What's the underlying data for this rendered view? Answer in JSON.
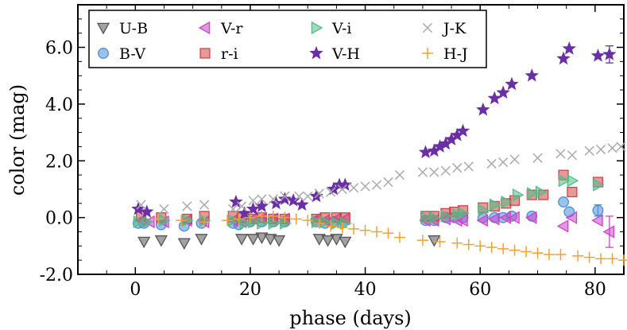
{
  "chart_data": {
    "type": "scatter",
    "xlabel": "phase (days)",
    "ylabel": "color (mag)",
    "xlim": [
      -10,
      85
    ],
    "ylim": [
      -2.0,
      7.5
    ],
    "x_ticks": [
      0,
      20,
      40,
      60,
      80
    ],
    "x_tick_labels": [
      "0",
      "20",
      "40",
      "60",
      "80"
    ],
    "y_ticks": [
      -2.0,
      0.0,
      2.0,
      4.0,
      6.0
    ],
    "y_tick_labels": [
      "-2.0",
      "0.0",
      "2.0",
      "4.0",
      "6.0"
    ],
    "legend_position": "top",
    "series": [
      {
        "name": "U-B",
        "marker": "triangle-down",
        "color": "#555555",
        "points": [
          [
            1.5,
            -0.85
          ],
          [
            4.5,
            -0.8
          ],
          [
            8.5,
            -0.9
          ],
          [
            11.5,
            -0.75
          ],
          [
            18.5,
            -0.75
          ],
          [
            20.5,
            -0.75
          ],
          [
            22,
            -0.7
          ],
          [
            23.5,
            -0.75
          ],
          [
            25,
            -0.8
          ],
          [
            32,
            -0.75
          ],
          [
            33.5,
            -0.8
          ],
          [
            35,
            -0.75
          ],
          [
            36.5,
            -0.85
          ],
          [
            52,
            -0.8
          ]
        ]
      },
      {
        "name": "B-V",
        "marker": "circle",
        "color": "#4a90d9",
        "points": [
          [
            0.5,
            -0.2
          ],
          [
            1.5,
            -0.2
          ],
          [
            4.5,
            -0.25
          ],
          [
            8.5,
            -0.3
          ],
          [
            11.5,
            -0.2
          ],
          [
            17,
            -0.2
          ],
          [
            18,
            -0.25
          ],
          [
            20,
            -0.15
          ],
          [
            22,
            -0.15
          ],
          [
            24,
            -0.15
          ],
          [
            26,
            -0.15
          ],
          [
            31.5,
            -0.15
          ],
          [
            33,
            -0.2
          ],
          [
            34.5,
            -0.15
          ],
          [
            36,
            -0.2
          ],
          [
            50.5,
            -0.1
          ],
          [
            52,
            -0.1
          ],
          [
            54,
            0
          ],
          [
            55.5,
            0
          ],
          [
            57,
            0
          ],
          [
            60.5,
            0
          ],
          [
            62.5,
            0
          ],
          [
            64,
            0
          ],
          [
            65.5,
            0.05
          ],
          [
            69,
            0.05
          ],
          [
            74.5,
            0.55
          ],
          [
            75.5,
            0.2
          ],
          [
            80.5,
            0.25
          ]
        ]
      },
      {
        "name": "V-r",
        "marker": "triangle-left",
        "color": "#cc44cc",
        "points": [
          [
            1,
            -0.1
          ],
          [
            2.5,
            -0.15
          ],
          [
            5,
            -0.15
          ],
          [
            9,
            -0.1
          ],
          [
            12,
            -0.15
          ],
          [
            17,
            -0.1
          ],
          [
            18.5,
            -0.15
          ],
          [
            20.5,
            -0.05
          ],
          [
            22,
            -0.05
          ],
          [
            24,
            -0.05
          ],
          [
            26,
            -0.05
          ],
          [
            31.5,
            -0.05
          ],
          [
            33,
            -0.1
          ],
          [
            35,
            -0.05
          ],
          [
            36.5,
            -0.05
          ],
          [
            50.5,
            -0.1
          ],
          [
            52,
            -0.1
          ],
          [
            54,
            -0.05
          ],
          [
            56,
            -0.1
          ],
          [
            57,
            -0.1
          ],
          [
            60.5,
            -0.1
          ],
          [
            62.5,
            -0.05
          ],
          [
            64.5,
            0
          ],
          [
            66,
            0
          ],
          [
            69,
            0
          ],
          [
            74.5,
            -0.3
          ],
          [
            76,
            0
          ],
          [
            80.5,
            -0.1
          ],
          [
            82.5,
            -0.5
          ]
        ]
      },
      {
        "name": "r-i",
        "marker": "square",
        "color": "#d04545",
        "points": [
          [
            1,
            0.05
          ],
          [
            4.5,
            0
          ],
          [
            9,
            -0.05
          ],
          [
            12,
            0.05
          ],
          [
            17,
            0.05
          ],
          [
            18.5,
            0
          ],
          [
            20.5,
            -0.05
          ],
          [
            22,
            0
          ],
          [
            24,
            -0.05
          ],
          [
            26,
            -0.05
          ],
          [
            31.5,
            -0.05
          ],
          [
            33,
            0
          ],
          [
            35,
            0
          ],
          [
            36.5,
            0
          ],
          [
            50.5,
            0.05
          ],
          [
            52,
            0.05
          ],
          [
            54,
            0.15
          ],
          [
            55.5,
            0.2
          ],
          [
            57,
            0.25
          ],
          [
            60.5,
            0.35
          ],
          [
            62.5,
            0.4
          ],
          [
            64.5,
            0.5
          ],
          [
            66,
            0.6
          ],
          [
            69,
            0.8
          ],
          [
            71,
            0.8
          ],
          [
            74.5,
            1.5
          ],
          [
            76,
            0.9
          ],
          [
            80.5,
            1.25
          ]
        ]
      },
      {
        "name": "V-i",
        "marker": "triangle-right",
        "color": "#55bb88",
        "points": [
          [
            0.5,
            -0.15
          ],
          [
            2,
            -0.15
          ],
          [
            5,
            -0.1
          ],
          [
            9,
            -0.1
          ],
          [
            12,
            -0.1
          ],
          [
            17,
            -0.1
          ],
          [
            19,
            -0.2
          ],
          [
            20.5,
            -0.15
          ],
          [
            22,
            -0.2
          ],
          [
            24,
            -0.2
          ],
          [
            26,
            -0.2
          ],
          [
            31.5,
            -0.15
          ],
          [
            33,
            -0.15
          ],
          [
            35,
            -0.2
          ],
          [
            36.5,
            -0.2
          ],
          [
            50.5,
            0
          ],
          [
            52,
            0
          ],
          [
            54,
            0.05
          ],
          [
            56,
            0.1
          ],
          [
            57,
            0.15
          ],
          [
            60.5,
            0.25
          ],
          [
            62.5,
            0.45
          ],
          [
            64.5,
            0.55
          ],
          [
            66.5,
            0.8
          ],
          [
            69,
            0.85
          ],
          [
            70.5,
            0.9
          ],
          [
            74.5,
            1.3
          ],
          [
            76,
            1.3
          ],
          [
            80.5,
            1.15
          ]
        ]
      },
      {
        "name": "V-H",
        "marker": "star",
        "color": "#6a2fa5",
        "points": [
          [
            0.5,
            0.3
          ],
          [
            2,
            0.2
          ],
          [
            17.5,
            0.55
          ],
          [
            19,
            0.15
          ],
          [
            20.5,
            0.3
          ],
          [
            22,
            0.4
          ],
          [
            24.5,
            0.5
          ],
          [
            26,
            0.65
          ],
          [
            27.5,
            0.6
          ],
          [
            29,
            0.45
          ],
          [
            31.5,
            0.75
          ],
          [
            34.5,
            1
          ],
          [
            35.5,
            1.15
          ],
          [
            36.5,
            1.15
          ],
          [
            50.5,
            2.3
          ],
          [
            52,
            2.35
          ],
          [
            53,
            2.5
          ],
          [
            54,
            2.6
          ],
          [
            55,
            2.75
          ],
          [
            56,
            2.9
          ],
          [
            57,
            3.05
          ],
          [
            60.5,
            3.8
          ],
          [
            62.5,
            4.2
          ],
          [
            64,
            4.4
          ],
          [
            65.5,
            4.7
          ],
          [
            69,
            5
          ],
          [
            74.5,
            5.6
          ],
          [
            75.5,
            5.95
          ],
          [
            80.5,
            5.7
          ],
          [
            82.5,
            5.75
          ]
        ]
      },
      {
        "name": "J-K",
        "marker": "x",
        "color": "#aaaaaa",
        "points": [
          [
            1,
            0.45
          ],
          [
            5,
            0.3
          ],
          [
            9,
            0.4
          ],
          [
            12,
            0.45
          ],
          [
            17,
            0.3
          ],
          [
            18.5,
            0.4
          ],
          [
            20.5,
            0.6
          ],
          [
            22,
            0.65
          ],
          [
            24,
            0.65
          ],
          [
            26,
            0.75
          ],
          [
            28.5,
            0.75
          ],
          [
            30,
            0.75
          ],
          [
            32,
            0.85
          ],
          [
            34,
            0.9
          ],
          [
            36,
            1
          ],
          [
            38,
            1.05
          ],
          [
            40,
            1.1
          ],
          [
            42,
            1.15
          ],
          [
            44,
            1.25
          ],
          [
            46,
            1.5
          ],
          [
            50,
            1.6
          ],
          [
            52,
            1.6
          ],
          [
            54,
            1.65
          ],
          [
            56,
            1.75
          ],
          [
            58,
            1.8
          ],
          [
            62,
            1.9
          ],
          [
            64,
            1.95
          ],
          [
            66,
            2.05
          ],
          [
            70,
            2.1
          ],
          [
            74,
            2.25
          ],
          [
            76,
            2.2
          ],
          [
            79,
            2.35
          ],
          [
            81,
            2.4
          ],
          [
            83,
            2.45
          ],
          [
            84.5,
            2.5
          ]
        ]
      },
      {
        "name": "H-J",
        "marker": "plus",
        "color": "#f5a030",
        "points": [
          [
            4,
            -0.05
          ],
          [
            8,
            -0.1
          ],
          [
            12,
            -0.15
          ],
          [
            16,
            -0.1
          ],
          [
            18,
            -0.05
          ],
          [
            20,
            0
          ],
          [
            22,
            0.05
          ],
          [
            24,
            0.05
          ],
          [
            26,
            0
          ],
          [
            28,
            -0.05
          ],
          [
            30,
            -0.1
          ],
          [
            32,
            -0.2
          ],
          [
            34,
            -0.3
          ],
          [
            36,
            -0.35
          ],
          [
            38,
            -0.4
          ],
          [
            40,
            -0.45
          ],
          [
            42,
            -0.5
          ],
          [
            44,
            -0.55
          ],
          [
            46,
            -0.7
          ],
          [
            50,
            -0.8
          ],
          [
            53,
            -0.85
          ],
          [
            56,
            -0.9
          ],
          [
            58,
            -0.95
          ],
          [
            60,
            -1
          ],
          [
            62,
            -1.05
          ],
          [
            64,
            -1.1
          ],
          [
            66,
            -1.15
          ],
          [
            68,
            -1.2
          ],
          [
            70,
            -1.25
          ],
          [
            72,
            -1.3
          ],
          [
            74,
            -1.3
          ],
          [
            77,
            -1.35
          ],
          [
            79,
            -1.4
          ],
          [
            81,
            -1.45
          ],
          [
            83,
            -1.45
          ],
          [
            85,
            -1.5
          ]
        ]
      }
    ]
  }
}
